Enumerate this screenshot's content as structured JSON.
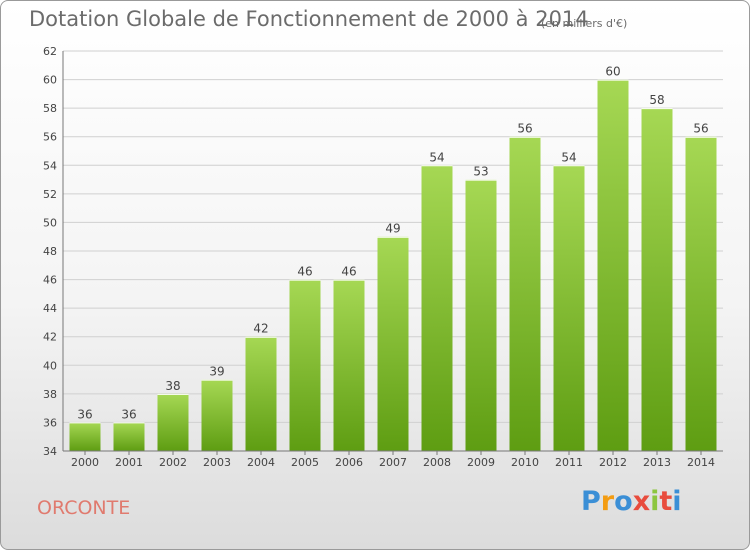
{
  "header": {
    "title": "Dotation Globale de Fonctionnement de 2000 à 2014",
    "subtitle": "(en milliers d'€)"
  },
  "footer": {
    "commune": "ORCONTE",
    "logo": {
      "letters": [
        "P",
        "r",
        "o",
        "x",
        "i",
        "t",
        "i"
      ],
      "colors": [
        "#3b8fd6",
        "#f39c12",
        "#3b8fd6",
        "#e84c3d",
        "#8cc63f",
        "#e84c3d",
        "#3b8fd6"
      ]
    }
  },
  "colors": {
    "bar_light": "#a6d854",
    "bar_dark": "#5e9d12",
    "grid": "#d0d0d0",
    "axis": "#777777"
  },
  "chart_data": {
    "type": "bar",
    "title": "Dotation Globale de Fonctionnement de 2000 à 2014",
    "subtitle": "(en milliers d'€)",
    "categories": [
      "2000",
      "2001",
      "2002",
      "2003",
      "2004",
      "2005",
      "2006",
      "2007",
      "2008",
      "2009",
      "2010",
      "2011",
      "2012",
      "2013",
      "2014"
    ],
    "values": [
      36,
      36,
      38,
      39,
      42,
      46,
      46,
      49,
      54,
      53,
      56,
      54,
      60,
      58,
      56
    ],
    "ylim": [
      34,
      62
    ],
    "yticks": [
      34,
      36,
      38,
      40,
      42,
      44,
      46,
      48,
      50,
      52,
      54,
      56,
      58,
      60,
      62
    ],
    "grid": true,
    "data_labels": true
  }
}
